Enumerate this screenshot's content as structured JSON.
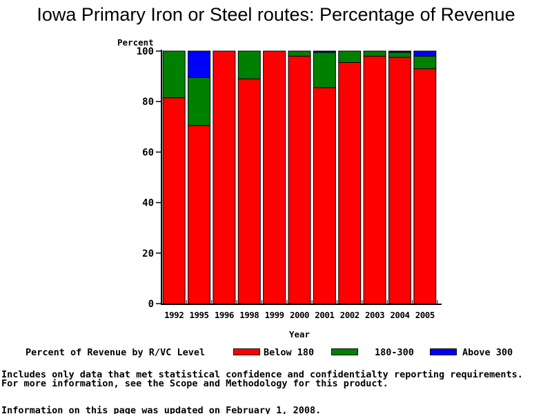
{
  "chart_data": {
    "type": "bar",
    "stacked": true,
    "title": "Iowa Primary Iron or Steel routes: Percentage of Revenue",
    "xlabel": "Year",
    "ylabel": "Percent",
    "ylim": [
      0,
      100
    ],
    "yticks": [
      0,
      20,
      40,
      60,
      80,
      100
    ],
    "grid": false,
    "legend_label": "Percent of Revenue by R/VC Level",
    "legend_position": "bottom",
    "categories": [
      "1992",
      "1995",
      "1996",
      "1998",
      "1999",
      "2000",
      "2001",
      "2002",
      "2003",
      "2004",
      "2005"
    ],
    "series": [
      {
        "name": "Below 180",
        "color": "#ff0000",
        "values": [
          81.5,
          70.5,
          100,
          89,
          100,
          98,
          85.5,
          95.5,
          98,
          97.5,
          93
        ]
      },
      {
        "name": "180-300",
        "color": "#008000",
        "values": [
          18.5,
          19,
          0,
          11,
          0,
          2,
          14,
          4.5,
          2,
          2,
          5
        ]
      },
      {
        "name": "Above 300",
        "color": "#0000ff",
        "values": [
          0,
          10.5,
          0,
          0,
          0,
          0,
          0.5,
          0,
          0,
          0.5,
          2
        ]
      }
    ]
  },
  "footnotes": {
    "line1": "Includes only data that met statistical confidence and confidentialty reporting requirements.",
    "line2": "For more information, see the Scope and Methodology for this product.",
    "line3": "Information on this page was updated on February 1, 2008."
  },
  "colors": {
    "background": "#ffffff",
    "text": "#000000",
    "axis": "#000000"
  }
}
